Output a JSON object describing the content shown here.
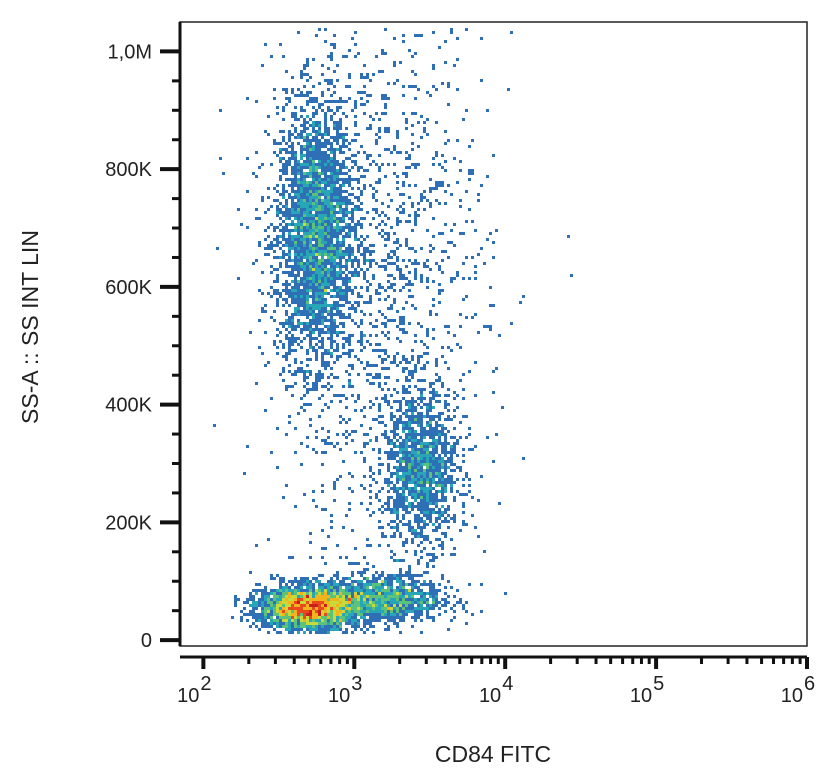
{
  "chart_data": {
    "type": "scatter",
    "title": "",
    "xlabel": "CD84 FITC",
    "ylabel": "SS-A :: SS INT LIN",
    "x_scale": "log",
    "xlim": [
      70,
      1000000
    ],
    "ylim": [
      -10000,
      1050000
    ],
    "y_ticks": [
      {
        "value": 0,
        "label": "0"
      },
      {
        "value": 200000,
        "label": "200K"
      },
      {
        "value": 400000,
        "label": "400K"
      },
      {
        "value": 600000,
        "label": "600K"
      },
      {
        "value": 800000,
        "label": "800K"
      },
      {
        "value": 1000000,
        "label": "1,0M"
      }
    ],
    "x_ticks": [
      {
        "value": 100,
        "base": "10",
        "exp": "2"
      },
      {
        "value": 1000,
        "base": "10",
        "exp": "3"
      },
      {
        "value": 10000,
        "base": "10",
        "exp": "4"
      },
      {
        "value": 100000,
        "base": "10",
        "exp": "5"
      },
      {
        "value": 1000000,
        "base": "10",
        "exp": "6"
      }
    ],
    "grid": false,
    "legend": "none",
    "colormap": [
      "#2b3d8f",
      "#2f6fb5",
      "#27a6b8",
      "#5cc27a",
      "#c9d93a",
      "#f2b41c",
      "#e8491d",
      "#c81e1e"
    ],
    "populations": [
      {
        "name": "",
        "x_center": 550,
        "x_spread_decades": 0.13,
        "y_center": 690000,
        "y_spread": 110000,
        "density": "high"
      },
      {
        "name": "",
        "x_center": 500,
        "x_spread_decades": 0.16,
        "y_center": 55000,
        "y_spread": 18000,
        "density": "high"
      },
      {
        "name": "",
        "x_center": 1500,
        "x_spread_decades": 0.2,
        "y_center": 70000,
        "y_spread": 20000,
        "density": "medium"
      },
      {
        "name": "",
        "x_center": 2800,
        "x_spread_decades": 0.12,
        "y_center": 290000,
        "y_spread": 65000,
        "density": "medium"
      },
      {
        "name": "",
        "x_center": 1500,
        "x_spread_decades": 0.35,
        "y_center": 600000,
        "y_spread": 250000,
        "density": "low"
      }
    ]
  }
}
